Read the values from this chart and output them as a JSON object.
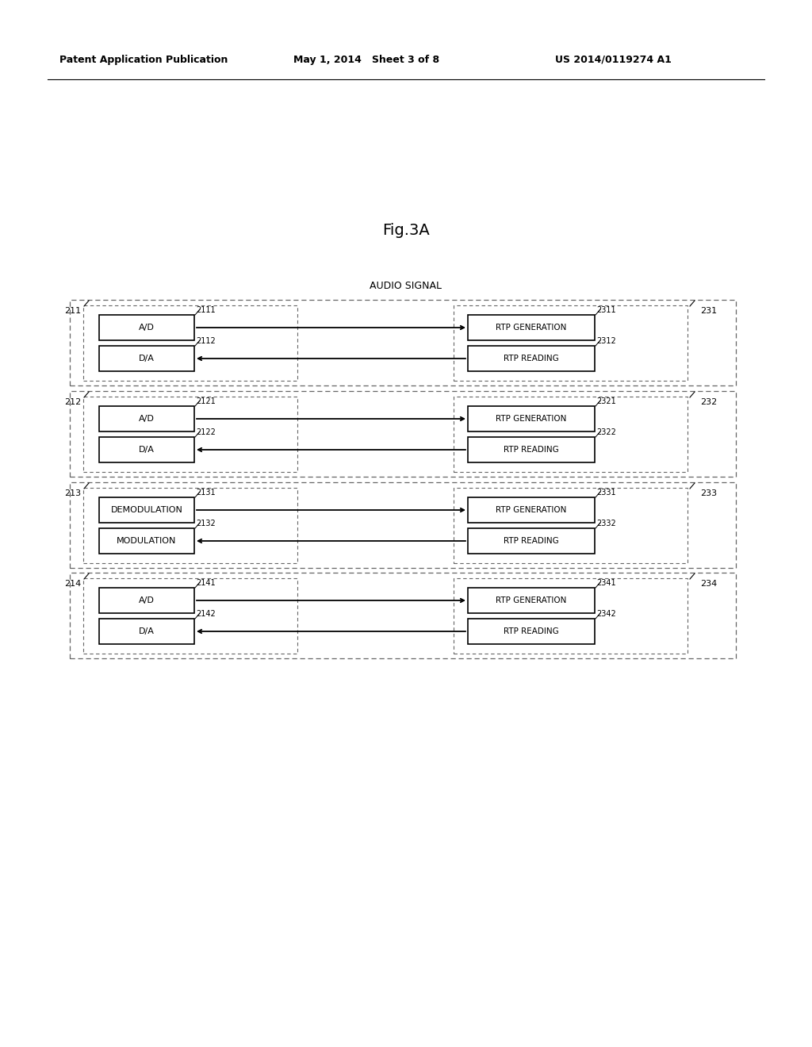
{
  "title": "Fig.3A",
  "audio_signal_label": "AUDIO SIGNAL",
  "header_left": "Patent Application Publication",
  "header_mid": "May 1, 2014   Sheet 3 of 8",
  "header_right": "US 2014/0119274 A1",
  "bg_color": "#ffffff",
  "rows": [
    {
      "outer_label_left": "211",
      "boxes_left": [
        {
          "label": "A/D",
          "num": "2111"
        },
        {
          "label": "D/A",
          "num": "2112"
        }
      ],
      "boxes_right": [
        {
          "label": "RTP GENERATION",
          "num": "2311"
        },
        {
          "label": "RTP READING",
          "num": "2312"
        }
      ],
      "outer_label_right": "231"
    },
    {
      "outer_label_left": "212",
      "boxes_left": [
        {
          "label": "A/D",
          "num": "2121"
        },
        {
          "label": "D/A",
          "num": "2122"
        }
      ],
      "boxes_right": [
        {
          "label": "RTP GENERATION",
          "num": "2321"
        },
        {
          "label": "RTP READING",
          "num": "2322"
        }
      ],
      "outer_label_right": "232"
    },
    {
      "outer_label_left": "213",
      "boxes_left": [
        {
          "label": "DEMODULATION",
          "num": "2131"
        },
        {
          "label": "MODULATION",
          "num": "2132"
        }
      ],
      "boxes_right": [
        {
          "label": "RTP GENERATION",
          "num": "2331"
        },
        {
          "label": "RTP READING",
          "num": "2332"
        }
      ],
      "outer_label_right": "233"
    },
    {
      "outer_label_left": "214",
      "boxes_left": [
        {
          "label": "A/D",
          "num": "2141"
        },
        {
          "label": "D/A",
          "num": "2142"
        }
      ],
      "boxes_right": [
        {
          "label": "RTP GENERATION",
          "num": "2341"
        },
        {
          "label": "RTP READING",
          "num": "2342"
        }
      ],
      "outer_label_right": "234"
    }
  ]
}
